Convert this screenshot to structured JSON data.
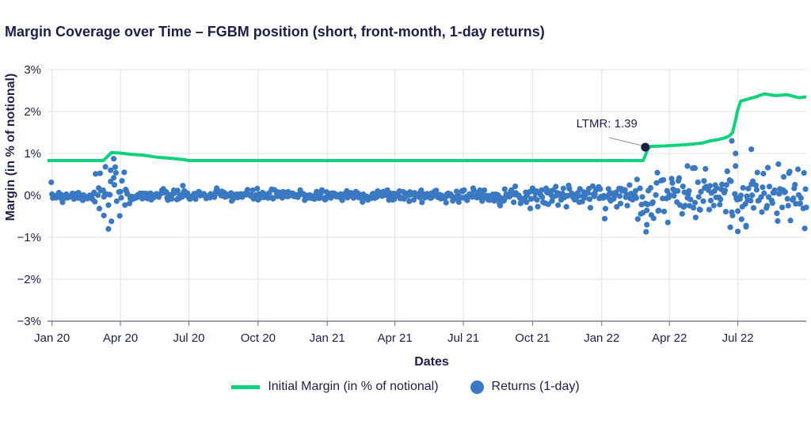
{
  "chart_data": {
    "type": "line+scatter",
    "title": "Margin Coverage over Time – FGBM position (short, front-month, 1-day returns)",
    "xlabel": "Dates",
    "ylabel": "Margin (in % of notional)",
    "x_ticks": [
      "Jan 20",
      "Apr 20",
      "Jul 20",
      "Oct 20",
      "Jan 21",
      "Apr 21",
      "Jul 21",
      "Oct 21",
      "Jan 22",
      "Apr 22",
      "Jul 22"
    ],
    "y_ticks": [
      "3%",
      "2%",
      "1%",
      "0%",
      "−1%",
      "−2%",
      "−3%"
    ],
    "ylim": [
      -3,
      3
    ],
    "xlim": [
      "2019-12-26",
      "2022-09-30"
    ],
    "grid": true,
    "legend_position": "bottom",
    "series": [
      {
        "name": "Initial Margin (in % of notional)",
        "type": "line",
        "color": "#11d17d",
        "points": [
          [
            "2019-12-26",
            0.83
          ],
          [
            "2020-03-09",
            0.83
          ],
          [
            "2020-03-12",
            0.88
          ],
          [
            "2020-03-16",
            0.95
          ],
          [
            "2020-03-20",
            1.02
          ],
          [
            "2020-04-01",
            1.01
          ],
          [
            "2020-04-15",
            0.98
          ],
          [
            "2020-05-01",
            0.96
          ],
          [
            "2020-05-20",
            0.91
          ],
          [
            "2020-06-10",
            0.88
          ],
          [
            "2020-06-25",
            0.85
          ],
          [
            "2020-07-01",
            0.83
          ],
          [
            "2022-02-25",
            0.83
          ],
          [
            "2022-02-28",
            0.95
          ],
          [
            "2022-03-03",
            1.1
          ],
          [
            "2022-03-07",
            1.17
          ],
          [
            "2022-03-25",
            1.18
          ],
          [
            "2022-04-15",
            1.2
          ],
          [
            "2022-05-01",
            1.22
          ],
          [
            "2022-05-15",
            1.25
          ],
          [
            "2022-05-25",
            1.3
          ],
          [
            "2022-06-05",
            1.33
          ],
          [
            "2022-06-15",
            1.38
          ],
          [
            "2022-06-20",
            1.42
          ],
          [
            "2022-06-24",
            1.5
          ],
          [
            "2022-06-28",
            1.8
          ],
          [
            "2022-07-01",
            2.05
          ],
          [
            "2022-07-05",
            2.25
          ],
          [
            "2022-07-15",
            2.3
          ],
          [
            "2022-07-25",
            2.35
          ],
          [
            "2022-08-05",
            2.42
          ],
          [
            "2022-08-20",
            2.38
          ],
          [
            "2022-09-05",
            2.4
          ],
          [
            "2022-09-20",
            2.33
          ],
          [
            "2022-09-30",
            2.35
          ]
        ]
      },
      {
        "name": "Returns (1-day)",
        "type": "scatter",
        "color": "#3a78c2",
        "generator": {
          "start": "2019-12-31",
          "end": "2022-09-30",
          "seed": 7,
          "regimes": [
            {
              "from": "2019-12-26",
              "to": "2020-02-28",
              "sd": 0.08
            },
            {
              "from": "2020-02-28",
              "to": "2020-04-15",
              "sd": 0.3
            },
            {
              "from": "2020-04-15",
              "to": "2021-09-15",
              "sd": 0.07
            },
            {
              "from": "2021-09-15",
              "to": "2022-02-15",
              "sd": 0.13
            },
            {
              "from": "2022-02-15",
              "to": "2022-09-30",
              "sd": 0.33
            }
          ]
        },
        "highlights": [
          [
            "2020-03-16",
            -0.8
          ],
          [
            "2020-03-19",
            0.6
          ],
          [
            "2020-03-10",
            -0.48
          ],
          [
            "2020-03-23",
            0.42
          ],
          [
            "2022-03-02",
            -0.7
          ],
          [
            "2022-06-23",
            1.3
          ],
          [
            "2022-07-19",
            1.1
          ],
          [
            "2022-07-01",
            -0.86
          ],
          [
            "2022-07-12",
            -0.75
          ],
          [
            "2022-04-25",
            0.7
          ],
          [
            "2022-05-05",
            0.65
          ],
          [
            "2022-06-28",
            0.7
          ]
        ]
      }
    ],
    "annotations": [
      {
        "text": "LTMR: 1.39",
        "x": "2022-02-28",
        "y": 1.15
      }
    ]
  },
  "legend": {
    "items": [
      {
        "label": "Initial Margin (in % of notional)"
      },
      {
        "label": "Returns (1-day)"
      }
    ]
  }
}
